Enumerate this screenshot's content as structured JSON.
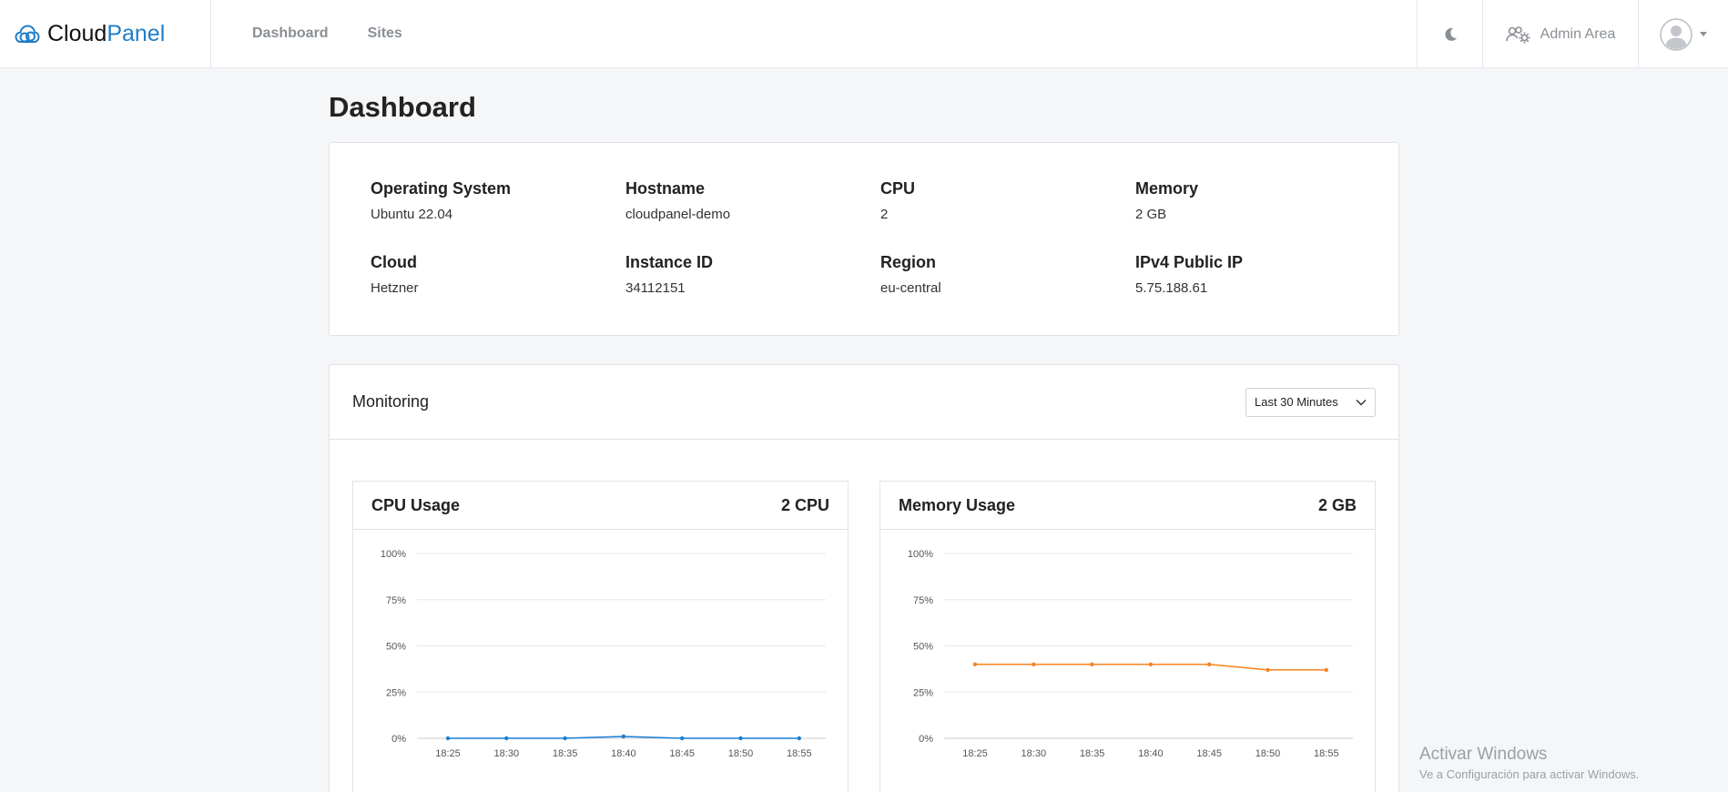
{
  "brand": {
    "name_part1": "Cloud",
    "name_part2": "Panel"
  },
  "nav": {
    "items": [
      "Dashboard",
      "Sites"
    ]
  },
  "header_right": {
    "admin_label": "Admin Area"
  },
  "page": {
    "title": "Dashboard"
  },
  "server_info": [
    {
      "label": "Operating System",
      "value": "Ubuntu 22.04"
    },
    {
      "label": "Hostname",
      "value": "cloudpanel-demo"
    },
    {
      "label": "CPU",
      "value": "2"
    },
    {
      "label": "Memory",
      "value": "2 GB"
    },
    {
      "label": "Cloud",
      "value": "Hetzner"
    },
    {
      "label": "Instance ID",
      "value": "34112151"
    },
    {
      "label": "Region",
      "value": "eu-central"
    },
    {
      "label": "IPv4 Public IP",
      "value": "5.75.188.61"
    }
  ],
  "monitoring": {
    "title": "Monitoring",
    "range_selected": "Last 30 Minutes"
  },
  "colors": {
    "cpu": "#1a7fd3",
    "memory": "#f5821f",
    "brand_accent": "#1f7ec8"
  },
  "chart_data": [
    {
      "type": "line",
      "title": "CPU Usage",
      "meta": "2 CPU",
      "x": [
        "18:25",
        "18:30",
        "18:35",
        "18:40",
        "18:45",
        "18:50",
        "18:55"
      ],
      "series": [
        {
          "values": [
            0,
            0,
            0,
            1,
            0,
            0,
            0
          ]
        }
      ],
      "ylim": [
        0,
        100
      ],
      "yticks": [
        "0%",
        "25%",
        "50%",
        "75%",
        "100%"
      ],
      "grid": true
    },
    {
      "type": "line",
      "title": "Memory Usage",
      "meta": "2 GB",
      "x": [
        "18:25",
        "18:30",
        "18:35",
        "18:40",
        "18:45",
        "18:50",
        "18:55"
      ],
      "series": [
        {
          "values": [
            40,
            40,
            40,
            40,
            40,
            37,
            37
          ]
        }
      ],
      "ylim": [
        0,
        100
      ],
      "yticks": [
        "0%",
        "25%",
        "50%",
        "75%",
        "100%"
      ],
      "grid": true
    }
  ],
  "watermark": {
    "title": "Activar Windows",
    "subtitle": "Ve a Configuración para activar Windows."
  }
}
